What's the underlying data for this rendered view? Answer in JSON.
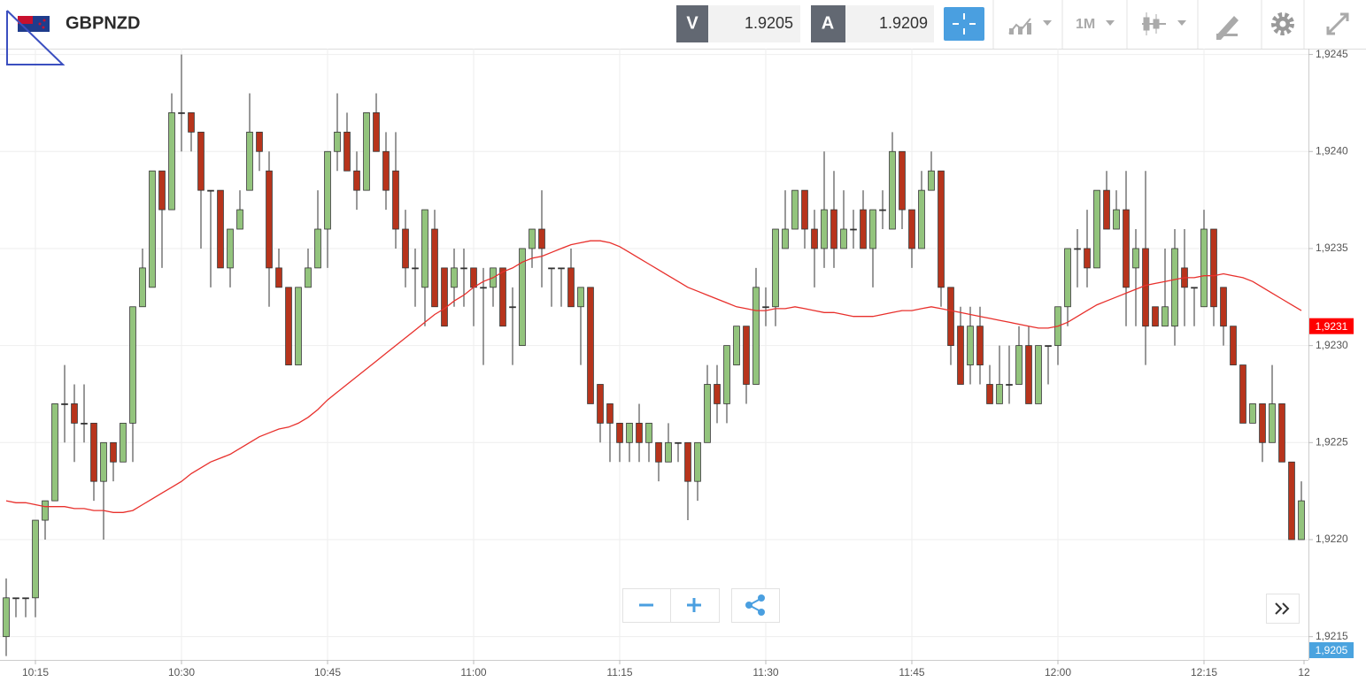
{
  "toolbar": {
    "symbol": "GBPNZD",
    "bid_label": "V",
    "bid": 1.9205,
    "ask_label": "A",
    "ask": 1.9209,
    "timeframe": "1M"
  },
  "chart_data": {
    "type": "candlestick",
    "x": [
      "10:12",
      "10:13",
      "10:14",
      "10:15",
      "10:16",
      "10:17",
      "10:18",
      "10:19",
      "10:20",
      "10:21",
      "10:22",
      "10:23",
      "10:24",
      "10:25",
      "10:26",
      "10:27",
      "10:28",
      "10:29",
      "10:30",
      "10:31",
      "10:32",
      "10:33",
      "10:34",
      "10:35",
      "10:36",
      "10:37",
      "10:38",
      "10:39",
      "10:40",
      "10:41",
      "10:42",
      "10:43",
      "10:44",
      "10:45",
      "10:46",
      "10:47",
      "10:48",
      "10:49",
      "10:50",
      "10:51",
      "10:52",
      "10:53",
      "10:54",
      "10:55",
      "10:56",
      "10:57",
      "10:58",
      "10:59",
      "11:00",
      "11:01",
      "11:02",
      "11:03",
      "11:04",
      "11:05",
      "11:06",
      "11:07",
      "11:08",
      "11:09",
      "11:10",
      "11:11",
      "11:12",
      "11:13",
      "11:14",
      "11:15",
      "11:16",
      "11:17",
      "11:18",
      "11:19",
      "11:20",
      "11:21",
      "11:22",
      "11:23",
      "11:24",
      "11:25",
      "11:26",
      "11:27",
      "11:28",
      "11:29",
      "11:30",
      "11:31",
      "11:32",
      "11:33",
      "11:34",
      "11:35",
      "11:36",
      "11:37",
      "11:38",
      "11:39",
      "11:40",
      "11:41",
      "11:42",
      "11:43",
      "11:44",
      "11:45",
      "11:46",
      "11:47",
      "11:48",
      "11:49",
      "11:50",
      "11:51",
      "11:52",
      "11:53",
      "11:54",
      "11:55",
      "11:56",
      "11:57",
      "11:58",
      "11:59",
      "12:00",
      "12:01",
      "12:02",
      "12:03",
      "12:04",
      "12:05",
      "12:06",
      "12:07",
      "12:08",
      "12:09",
      "12:10",
      "12:11",
      "12:12",
      "12:13",
      "12:14",
      "12:15",
      "12:16",
      "12:17",
      "12:18",
      "12:19",
      "12:20",
      "12:21",
      "12:22",
      "12:23",
      "12:24",
      "12:25"
    ],
    "open": [
      1.9215,
      1.9217,
      1.9217,
      1.9217,
      1.9221,
      1.9222,
      1.9227,
      1.9227,
      1.9226,
      1.9226,
      1.9223,
      1.9225,
      1.9224,
      1.9226,
      1.9232,
      1.9233,
      1.9239,
      1.9237,
      1.9242,
      1.9242,
      1.9241,
      1.9238,
      1.9238,
      1.9234,
      1.9236,
      1.9238,
      1.9241,
      1.9239,
      1.9234,
      1.9233,
      1.9229,
      1.9233,
      1.9234,
      1.9236,
      1.924,
      1.9241,
      1.9239,
      1.9238,
      1.9242,
      1.924,
      1.9239,
      1.9236,
      1.9234,
      1.9233,
      1.9236,
      1.9234,
      1.9233,
      1.9234,
      1.9234,
      1.9233,
      1.9233,
      1.9234,
      1.9232,
      1.923,
      1.9235,
      1.9236,
      1.9234,
      1.9234,
      1.9234,
      1.9232,
      1.9233,
      1.9228,
      1.9227,
      1.9226,
      1.9225,
      1.9226,
      1.9225,
      1.9225,
      1.9224,
      1.9225,
      1.9225,
      1.9223,
      1.9225,
      1.9228,
      1.9227,
      1.9229,
      1.9231,
      1.9228,
      1.9232,
      1.9232,
      1.9235,
      1.9236,
      1.9238,
      1.9236,
      1.9235,
      1.9237,
      1.9235,
      1.9236,
      1.9237,
      1.9235,
      1.9237,
      1.9236,
      1.924,
      1.9237,
      1.9235,
      1.9238,
      1.9239,
      1.9233,
      1.9231,
      1.9229,
      1.9231,
      1.9228,
      1.9227,
      1.9228,
      1.9228,
      1.923,
      1.9227,
      1.923,
      1.923,
      1.9232,
      1.9235,
      1.9235,
      1.9234,
      1.9238,
      1.9236,
      1.9237,
      1.9234,
      1.9235,
      1.9232,
      1.9231,
      1.9231,
      1.9234,
      1.9233,
      1.9232,
      1.9236,
      1.9233,
      1.9231,
      1.9229,
      1.9226,
      1.9227,
      1.9225,
      1.9227,
      1.9224,
      1.922
    ],
    "high": [
      1.9218,
      1.9217,
      1.9217,
      1.9221,
      1.9222,
      1.9227,
      1.9229,
      1.9228,
      1.9228,
      1.9226,
      1.9225,
      1.9225,
      1.9226,
      1.9232,
      1.9235,
      1.9239,
      1.9239,
      1.9243,
      1.9245,
      1.9242,
      1.9241,
      1.9238,
      1.9238,
      1.9236,
      1.9238,
      1.9243,
      1.9241,
      1.924,
      1.9235,
      1.9233,
      1.9233,
      1.9235,
      1.9238,
      1.924,
      1.9243,
      1.9242,
      1.924,
      1.9242,
      1.9243,
      1.9241,
      1.9241,
      1.9237,
      1.9235,
      1.9237,
      1.9237,
      1.9234,
      1.9235,
      1.9235,
      1.9234,
      1.9234,
      1.9234,
      1.9234,
      1.9233,
      1.9235,
      1.9236,
      1.9238,
      1.9234,
      1.9234,
      1.9235,
      1.9233,
      1.9233,
      1.9228,
      1.9227,
      1.9226,
      1.9226,
      1.9227,
      1.9226,
      1.9225,
      1.9226,
      1.9225,
      1.9225,
      1.9225,
      1.9229,
      1.9229,
      1.923,
      1.9231,
      1.9231,
      1.9234,
      1.9233,
      1.9236,
      1.9238,
      1.9238,
      1.9238,
      1.9237,
      1.924,
      1.9239,
      1.9238,
      1.9237,
      1.9238,
      1.9237,
      1.9238,
      1.9241,
      1.924,
      1.9237,
      1.9239,
      1.924,
      1.9239,
      1.9233,
      1.9232,
      1.9232,
      1.9232,
      1.9229,
      1.923,
      1.923,
      1.9231,
      1.9231,
      1.923,
      1.923,
      1.9232,
      1.9235,
      1.9236,
      1.9237,
      1.9238,
      1.9239,
      1.9238,
      1.9239,
      1.9236,
      1.9239,
      1.9232,
      1.9235,
      1.9236,
      1.9236,
      1.9233,
      1.9237,
      1.9236,
      1.9233,
      1.9231,
      1.9229,
      1.9227,
      1.9227,
      1.9229,
      1.9227,
      1.9224,
      1.9223
    ],
    "low": [
      1.9214,
      1.9216,
      1.9216,
      1.9216,
      1.922,
      1.9222,
      1.9225,
      1.9224,
      1.9225,
      1.9222,
      1.922,
      1.9223,
      1.9224,
      1.9224,
      1.9232,
      1.9233,
      1.9234,
      1.9237,
      1.924,
      1.924,
      1.9235,
      1.9233,
      1.9234,
      1.9233,
      1.9236,
      1.9238,
      1.9239,
      1.9232,
      1.9233,
      1.9229,
      1.9229,
      1.9233,
      1.9234,
      1.9234,
      1.9239,
      1.9239,
      1.9237,
      1.9238,
      1.924,
      1.9237,
      1.9235,
      1.9233,
      1.9232,
      1.9231,
      1.9232,
      1.9231,
      1.9232,
      1.9232,
      1.9231,
      1.9229,
      1.9232,
      1.9231,
      1.9229,
      1.923,
      1.9234,
      1.9233,
      1.9232,
      1.9232,
      1.9232,
      1.9229,
      1.9227,
      1.9225,
      1.9224,
      1.9224,
      1.9224,
      1.9224,
      1.9224,
      1.9223,
      1.9224,
      1.9224,
      1.9221,
      1.9222,
      1.9225,
      1.9226,
      1.9226,
      1.9229,
      1.9227,
      1.9228,
      1.9231,
      1.9231,
      1.9235,
      1.9236,
      1.9235,
      1.9233,
      1.9234,
      1.9234,
      1.9235,
      1.9235,
      1.9235,
      1.9233,
      1.9236,
      1.9236,
      1.9236,
      1.9234,
      1.9235,
      1.9238,
      1.9232,
      1.9229,
      1.9228,
      1.9228,
      1.9228,
      1.9227,
      1.9227,
      1.9227,
      1.9228,
      1.9227,
      1.9227,
      1.9228,
      1.9229,
      1.9231,
      1.9233,
      1.9233,
      1.9234,
      1.9236,
      1.9236,
      1.9231,
      1.9231,
      1.9229,
      1.9231,
      1.9231,
      1.923,
      1.9231,
      1.9231,
      1.9232,
      1.9231,
      1.923,
      1.9229,
      1.9226,
      1.9226,
      1.9224,
      1.9225,
      1.9224,
      1.922,
      1.922
    ],
    "close": [
      1.9217,
      1.9217,
      1.9217,
      1.9221,
      1.9222,
      1.9227,
      1.9227,
      1.9226,
      1.9226,
      1.9223,
      1.9225,
      1.9224,
      1.9226,
      1.9232,
      1.9234,
      1.9239,
      1.9237,
      1.9242,
      1.9242,
      1.9241,
      1.9238,
      1.9238,
      1.9234,
      1.9236,
      1.9237,
      1.9241,
      1.924,
      1.9234,
      1.9233,
      1.9229,
      1.9233,
      1.9234,
      1.9236,
      1.924,
      1.9241,
      1.9239,
      1.9238,
      1.9242,
      1.924,
      1.9238,
      1.9236,
      1.9234,
      1.9234,
      1.9237,
      1.9232,
      1.9231,
      1.9234,
      1.9234,
      1.9233,
      1.9233,
      1.9234,
      1.9231,
      1.9232,
      1.9235,
      1.9236,
      1.9235,
      1.9234,
      1.9234,
      1.9232,
      1.9233,
      1.9227,
      1.9226,
      1.9226,
      1.9225,
      1.9226,
      1.9225,
      1.9226,
      1.9224,
      1.9225,
      1.9225,
      1.9223,
      1.9225,
      1.9228,
      1.9227,
      1.923,
      1.9231,
      1.9228,
      1.9233,
      1.9232,
      1.9236,
      1.9236,
      1.9238,
      1.9236,
      1.9235,
      1.9237,
      1.9235,
      1.9236,
      1.9236,
      1.9235,
      1.9237,
      1.9237,
      1.924,
      1.9237,
      1.9235,
      1.9238,
      1.9239,
      1.9233,
      1.923,
      1.9228,
      1.9231,
      1.9229,
      1.9227,
      1.9228,
      1.9228,
      1.923,
      1.9227,
      1.923,
      1.923,
      1.9232,
      1.9235,
      1.9235,
      1.9234,
      1.9238,
      1.9236,
      1.9237,
      1.9233,
      1.9235,
      1.9231,
      1.9231,
      1.9232,
      1.9235,
      1.9233,
      1.9233,
      1.9236,
      1.9232,
      1.9231,
      1.9229,
      1.9226,
      1.9227,
      1.9225,
      1.9227,
      1.9224,
      1.922,
      1.9222
    ],
    "up_color": "#93c47d",
    "down_color": "#b7341c",
    "ma": {
      "color": "#e8302c",
      "values": [
        1.9222,
        1.92219,
        1.92219,
        1.92218,
        1.92217,
        1.92217,
        1.92217,
        1.92216,
        1.92216,
        1.92215,
        1.92215,
        1.92214,
        1.92214,
        1.92215,
        1.92218,
        1.92221,
        1.92224,
        1.92227,
        1.9223,
        1.92234,
        1.92237,
        1.9224,
        1.92242,
        1.92244,
        1.92247,
        1.9225,
        1.92253,
        1.92255,
        1.92257,
        1.92258,
        1.9226,
        1.92263,
        1.92267,
        1.92272,
        1.92276,
        1.9228,
        1.92284,
        1.92288,
        1.92292,
        1.92296,
        1.923,
        1.92304,
        1.92308,
        1.92312,
        1.92316,
        1.92319,
        1.92323,
        1.92326,
        1.9233,
        1.92333,
        1.92335,
        1.92338,
        1.9234,
        1.92343,
        1.92345,
        1.92346,
        1.92348,
        1.9235,
        1.92352,
        1.92353,
        1.92354,
        1.92354,
        1.92353,
        1.92351,
        1.92348,
        1.92345,
        1.92342,
        1.92339,
        1.92336,
        1.92333,
        1.9233,
        1.92328,
        1.92326,
        1.92324,
        1.92322,
        1.9232,
        1.92319,
        1.92318,
        1.92318,
        1.92319,
        1.92319,
        1.9232,
        1.92319,
        1.92318,
        1.92317,
        1.92317,
        1.92316,
        1.92315,
        1.92315,
        1.92315,
        1.92316,
        1.92317,
        1.92318,
        1.92318,
        1.92319,
        1.9232,
        1.92319,
        1.92318,
        1.92317,
        1.92316,
        1.92315,
        1.92314,
        1.92313,
        1.92312,
        1.92311,
        1.9231,
        1.92309,
        1.92309,
        1.9231,
        1.92312,
        1.92315,
        1.92318,
        1.92321,
        1.92323,
        1.92325,
        1.92327,
        1.92329,
        1.92331,
        1.92332,
        1.92333,
        1.92334,
        1.92335,
        1.92335,
        1.92336,
        1.92336,
        1.92337,
        1.92336,
        1.92335,
        1.92333,
        1.9233,
        1.92327,
        1.92324,
        1.92321,
        1.92318
      ]
    },
    "ylim": [
      1.92138,
      1.92453
    ],
    "yticks": [
      {
        "value": 1.9245,
        "label": "1,9245"
      },
      {
        "value": 1.924,
        "label": "1,9240"
      },
      {
        "value": 1.9235,
        "label": "1,9235"
      },
      {
        "value": 1.923,
        "label": "1,9230"
      },
      {
        "value": 1.9225,
        "label": "1,9225"
      },
      {
        "value": 1.922,
        "label": "1,9220"
      },
      {
        "value": 1.9215,
        "label": "1,9215"
      }
    ],
    "xticks": [
      "10:15",
      "10:30",
      "10:45",
      "11:00",
      "11:15",
      "11:30",
      "11:45",
      "12:00",
      "12:15",
      "12"
    ],
    "price_labels": [
      {
        "value": 1.9231,
        "label": "1,9231",
        "color": "#ff0000"
      },
      {
        "value": 1.9205,
        "label": "1,9205",
        "color": "#4aa3df"
      }
    ],
    "grid": true
  }
}
